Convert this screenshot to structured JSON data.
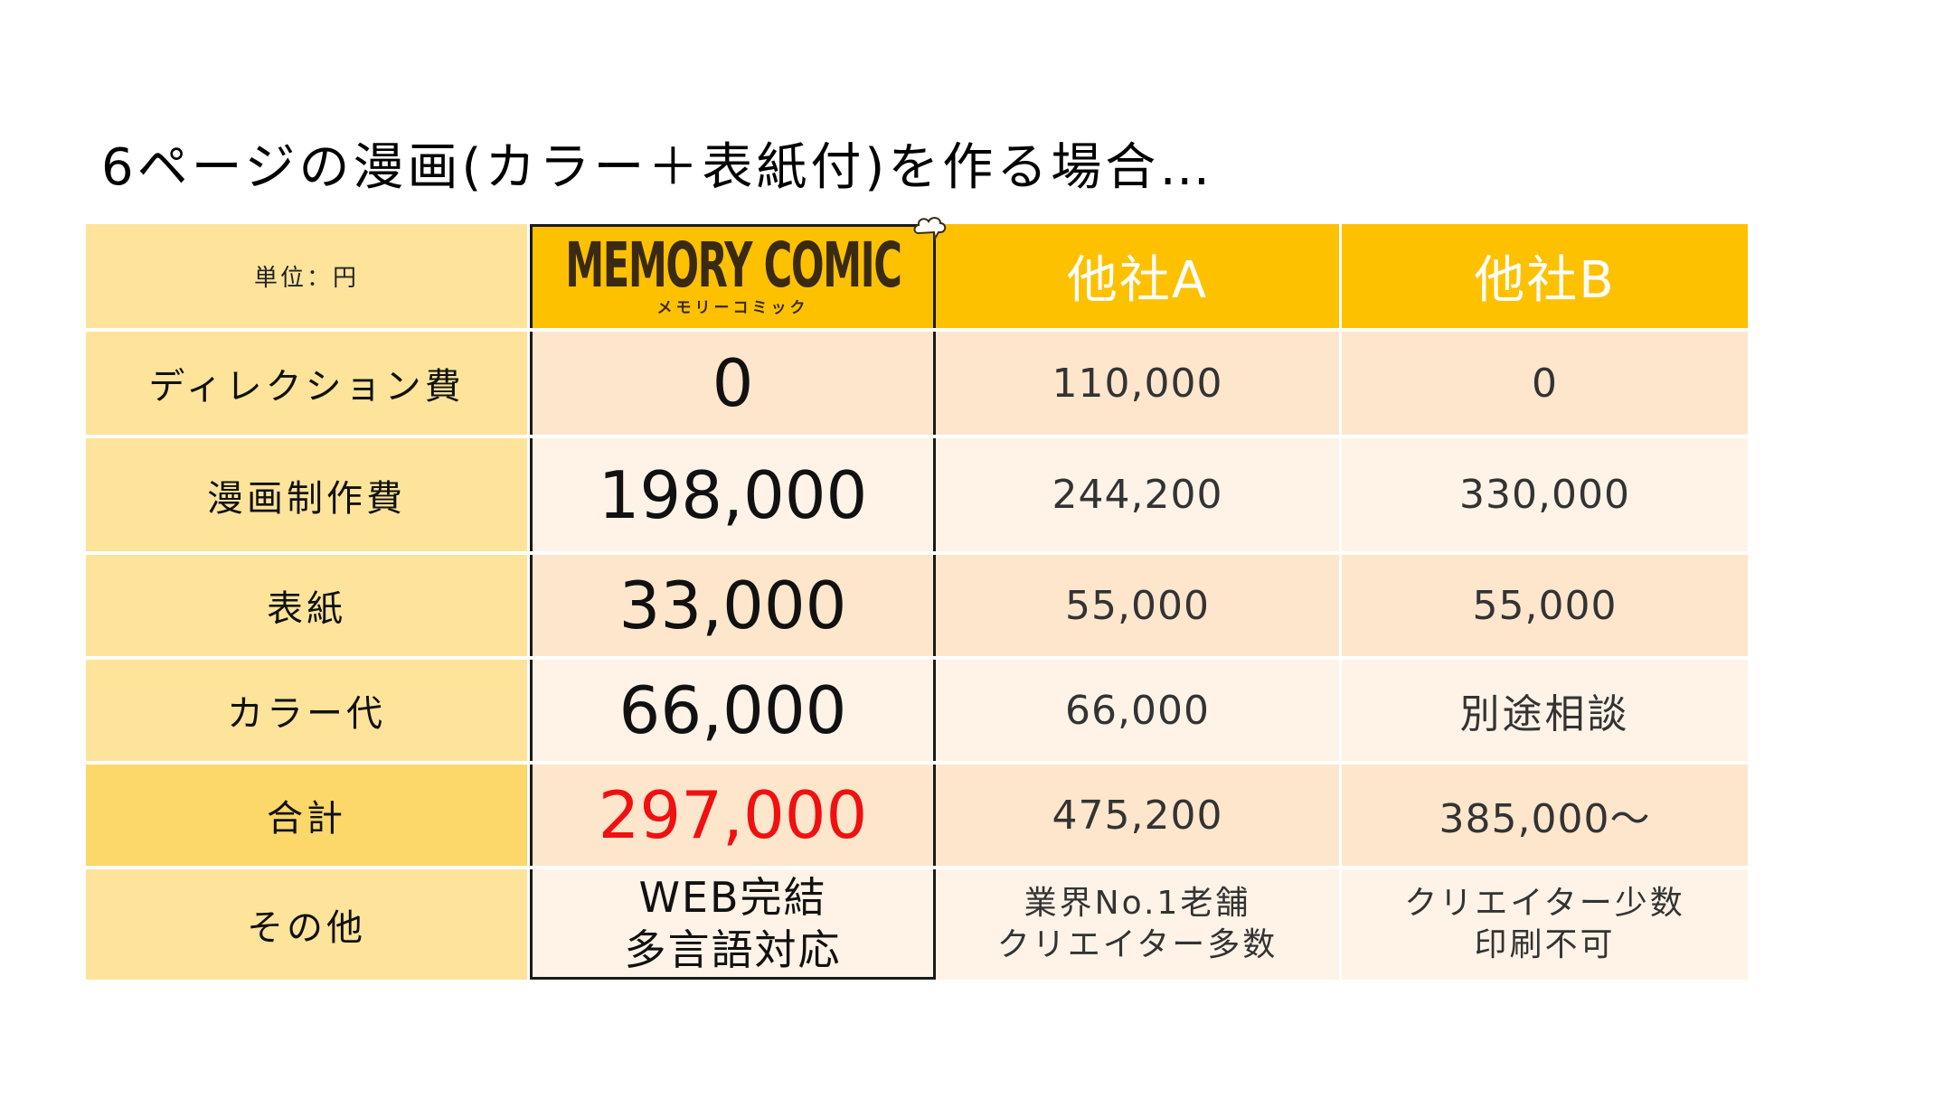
{
  "title": "6ページの漫画(カラー＋表紙付)を作る場合…",
  "table": {
    "unit_label": "単位：円",
    "columns": {
      "memory_comic": {
        "logo_text": "MEMORY COMIC",
        "logo_sub": "メモリーコミック"
      },
      "company_a": "他社A",
      "company_b": "他社B"
    },
    "rows": [
      {
        "label": "ディレクション費",
        "mc": "0",
        "a": "110,000",
        "b": "0"
      },
      {
        "label": "漫画制作費",
        "mc": "198,000",
        "a": "244,200",
        "b": "330,000"
      },
      {
        "label": "表紙",
        "mc": "33,000",
        "a": "55,000",
        "b": "55,000"
      },
      {
        "label": "カラー代",
        "mc": "66,000",
        "a": "66,000",
        "b": "別途相談"
      },
      {
        "label": "合計",
        "mc": "297,000",
        "a": "475,200",
        "b": "385,000～"
      }
    ],
    "other": {
      "label": "その他",
      "mc": [
        "WEB完結",
        "多言語対応"
      ],
      "a": [
        "業界No.1老舗",
        "クリエイター多数"
      ],
      "b": [
        "クリエイター少数",
        "印刷不可"
      ]
    }
  },
  "colors": {
    "header_accent": "#fec100",
    "label_bg": "#fde49a",
    "total_label_bg": "#fcd769",
    "total_highlight": "#f01010"
  }
}
